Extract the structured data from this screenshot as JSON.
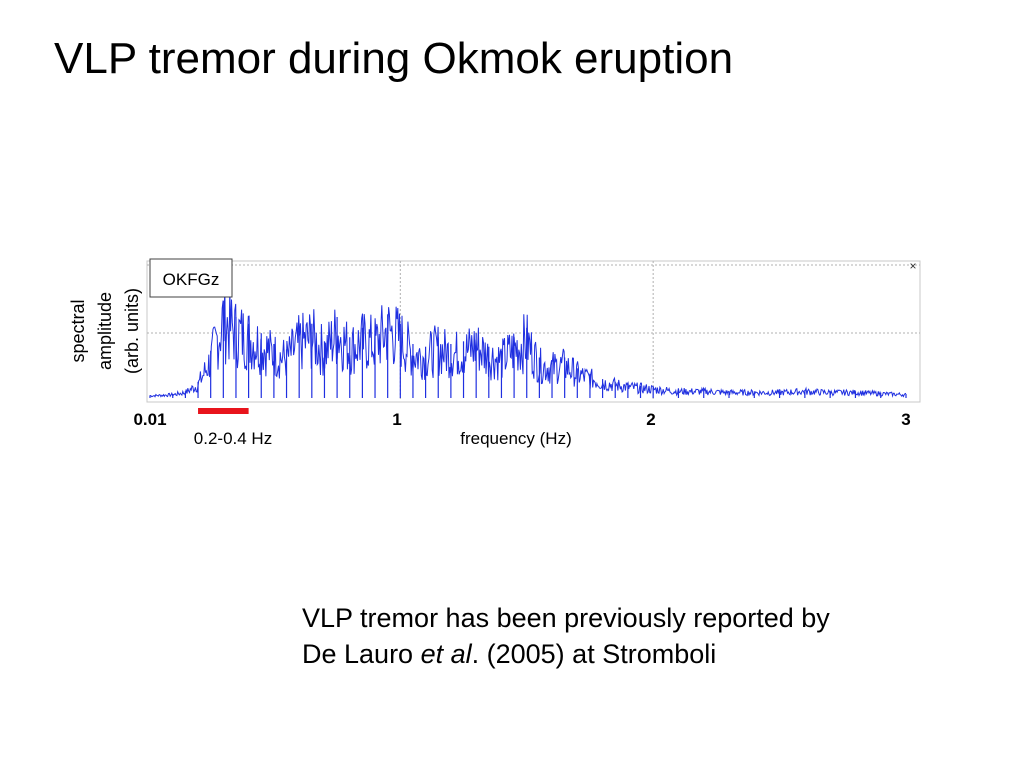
{
  "slide": {
    "title": "VLP tremor during Okmok eruption"
  },
  "caption": {
    "line1": "VLP tremor has been previously reported by",
    "line2_pre": "De Lauro ",
    "line2_em": "et al",
    "line2_post": ". (2005) at Stromboli"
  },
  "chart_data": {
    "type": "line",
    "station": "OKFGz",
    "xlabel": "frequency (Hz)",
    "ylabel_lines": [
      "spectral",
      "amplitude",
      "(arb. units)"
    ],
    "x_ticks": [
      "0.01",
      "1",
      "2",
      "3"
    ],
    "xlim": [
      0.01,
      3
    ],
    "ylim": [
      0,
      1
    ],
    "grid": true,
    "close_glyph": "×",
    "band": {
      "label": "0.2-0.4 Hz",
      "range": [
        0.2,
        0.4
      ]
    },
    "colors": {
      "series": "#1f2fe0",
      "band": "#e8141c",
      "grid": "#b0b0b0"
    },
    "series": [
      {
        "x": [
          0.01,
          0.1,
          0.15,
          0.2,
          0.25,
          0.3,
          0.35,
          0.4,
          0.45,
          0.5,
          0.55,
          0.6,
          0.65,
          0.7,
          0.75,
          0.8,
          0.85,
          0.9,
          0.95,
          1.0,
          1.05,
          1.1,
          1.15,
          1.2,
          1.25,
          1.3,
          1.35,
          1.4,
          1.45,
          1.5,
          1.55,
          1.6,
          1.65,
          1.7,
          1.75,
          1.8,
          1.85,
          1.9,
          1.95,
          2.0,
          2.1,
          2.2,
          2.3,
          2.4,
          2.5,
          2.6,
          2.7,
          2.8,
          2.9,
          3.0
        ],
        "values": [
          0.02,
          0.03,
          0.05,
          0.12,
          0.35,
          0.72,
          0.6,
          0.55,
          0.48,
          0.4,
          0.36,
          0.5,
          0.55,
          0.42,
          0.6,
          0.45,
          0.52,
          0.5,
          0.62,
          0.55,
          0.4,
          0.38,
          0.45,
          0.4,
          0.42,
          0.48,
          0.38,
          0.35,
          0.45,
          0.52,
          0.3,
          0.28,
          0.3,
          0.22,
          0.18,
          0.14,
          0.12,
          0.1,
          0.09,
          0.08,
          0.06,
          0.06,
          0.05,
          0.05,
          0.05,
          0.06,
          0.05,
          0.05,
          0.04,
          0.03
        ]
      }
    ]
  }
}
